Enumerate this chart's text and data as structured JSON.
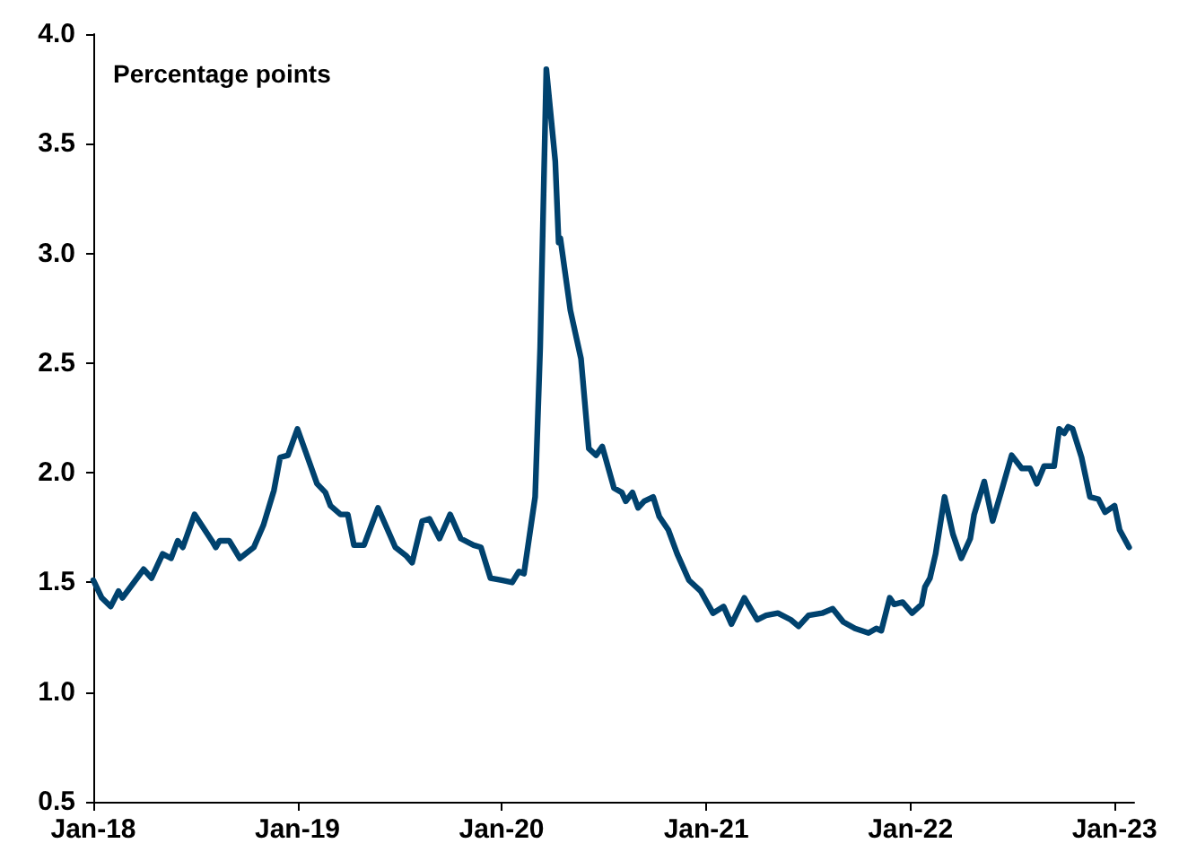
{
  "chart_data": {
    "type": "line",
    "ylabel": "Percentage points",
    "x": [
      "2018-01-01",
      "2018-01-16",
      "2018-02-01",
      "2018-02-15",
      "2018-02-22",
      "2018-04-01",
      "2018-04-15",
      "2018-05-05",
      "2018-05-20",
      "2018-06-01",
      "2018-06-10",
      "2018-07-01",
      "2018-08-01",
      "2018-08-08",
      "2018-08-15",
      "2018-09-01",
      "2018-09-20",
      "2018-10-15",
      "2018-11-01",
      "2018-11-20",
      "2018-12-01",
      "2018-12-15",
      "2019-01-01",
      "2019-02-05",
      "2019-02-20",
      "2019-03-01",
      "2019-03-19",
      "2019-04-01",
      "2019-04-12",
      "2019-04-30",
      "2019-05-25",
      "2019-06-25",
      "2019-07-15",
      "2019-07-25",
      "2019-08-12",
      "2019-08-25",
      "2019-09-12",
      "2019-10-01",
      "2019-10-20",
      "2019-11-12",
      "2019-11-25",
      "2019-12-12",
      "2020-01-01",
      "2020-01-20",
      "2020-02-01",
      "2020-02-10",
      "2020-03-01",
      "2020-03-10",
      "2020-03-21",
      "2020-04-06",
      "2020-04-12",
      "2020-04-15",
      "2020-05-03",
      "2020-05-22",
      "2020-06-05",
      "2020-06-18",
      "2020-06-29",
      "2020-07-10",
      "2020-07-20",
      "2020-08-03",
      "2020-08-10",
      "2020-08-22",
      "2020-09-01",
      "2020-09-12",
      "2020-09-28",
      "2020-10-09",
      "2020-10-25",
      "2020-11-10",
      "2020-12-01",
      "2020-12-22",
      "2021-01-13",
      "2021-02-01",
      "2021-02-15",
      "2021-03-10",
      "2021-04-02",
      "2021-04-18",
      "2021-05-09",
      "2021-06-01",
      "2021-06-15",
      "2021-07-03",
      "2021-07-27",
      "2021-08-15",
      "2021-09-03",
      "2021-09-24",
      "2021-10-18",
      "2021-11-01",
      "2021-11-10",
      "2021-11-25",
      "2021-12-03",
      "2021-12-18",
      "2022-01-04",
      "2022-01-21",
      "2022-01-27",
      "2022-02-05",
      "2022-02-15",
      "2022-03-03",
      "2022-03-18",
      "2022-04-02",
      "2022-04-18",
      "2022-04-25",
      "2022-05-13",
      "2022-05-28",
      "2022-06-12",
      "2022-07-01",
      "2022-07-19",
      "2022-08-03",
      "2022-08-15",
      "2022-08-28",
      "2022-09-15",
      "2022-09-24",
      "2022-10-03",
      "2022-10-10",
      "2022-10-18",
      "2022-11-03",
      "2022-11-18",
      "2022-12-03",
      "2022-12-15",
      "2023-01-01",
      "2023-01-10",
      "2023-01-27"
    ],
    "series": [
      {
        "color": "#00426e",
        "values": [
          1.51,
          1.43,
          1.39,
          1.46,
          1.43,
          1.56,
          1.52,
          1.63,
          1.61,
          1.69,
          1.66,
          1.81,
          1.69,
          1.66,
          1.69,
          1.69,
          1.61,
          1.66,
          1.76,
          1.92,
          2.07,
          2.08,
          2.2,
          1.95,
          1.91,
          1.85,
          1.81,
          1.81,
          1.67,
          1.67,
          1.84,
          1.66,
          1.62,
          1.59,
          1.78,
          1.79,
          1.7,
          1.81,
          1.7,
          1.67,
          1.66,
          1.52,
          1.51,
          1.5,
          1.55,
          1.54,
          1.89,
          2.57,
          3.84,
          3.42,
          3.05,
          3.07,
          2.74,
          2.52,
          2.11,
          2.08,
          2.12,
          2.02,
          1.93,
          1.91,
          1.87,
          1.91,
          1.84,
          1.87,
          1.89,
          1.8,
          1.74,
          1.63,
          1.51,
          1.46,
          1.36,
          1.39,
          1.31,
          1.43,
          1.33,
          1.35,
          1.36,
          1.33,
          1.3,
          1.35,
          1.36,
          1.38,
          1.32,
          1.29,
          1.27,
          1.29,
          1.28,
          1.43,
          1.4,
          1.41,
          1.36,
          1.4,
          1.48,
          1.52,
          1.63,
          1.89,
          1.72,
          1.61,
          1.7,
          1.81,
          1.96,
          1.78,
          1.91,
          2.08,
          2.02,
          2.02,
          1.95,
          2.03,
          2.03,
          2.2,
          2.18,
          2.21,
          2.2,
          2.07,
          1.89,
          1.88,
          1.82,
          1.85,
          1.74,
          1.66
        ]
      }
    ],
    "xlim": [
      "2018-01-01",
      "2023-02-05"
    ],
    "xticks": [
      {
        "value": "2018-01-01",
        "label": "Jan-18"
      },
      {
        "value": "2019-01-01",
        "label": "Jan-19"
      },
      {
        "value": "2020-01-01",
        "label": "Jan-20"
      },
      {
        "value": "2021-01-01",
        "label": "Jan-21"
      },
      {
        "value": "2022-01-01",
        "label": "Jan-22"
      },
      {
        "value": "2023-01-01",
        "label": "Jan-23"
      }
    ],
    "ylim": [
      0.5,
      4.0
    ],
    "yticks": [
      {
        "value": 0.5,
        "label": "0.5"
      },
      {
        "value": 1.0,
        "label": "1.0"
      },
      {
        "value": 1.5,
        "label": "1.5"
      },
      {
        "value": 2.0,
        "label": "2.0"
      },
      {
        "value": 2.5,
        "label": "2.5"
      },
      {
        "value": 3.0,
        "label": "3.0"
      },
      {
        "value": 3.5,
        "label": "3.5"
      },
      {
        "value": 4.0,
        "label": "4.0"
      }
    ],
    "grid": false,
    "marker": "none",
    "line_style": "solid"
  }
}
